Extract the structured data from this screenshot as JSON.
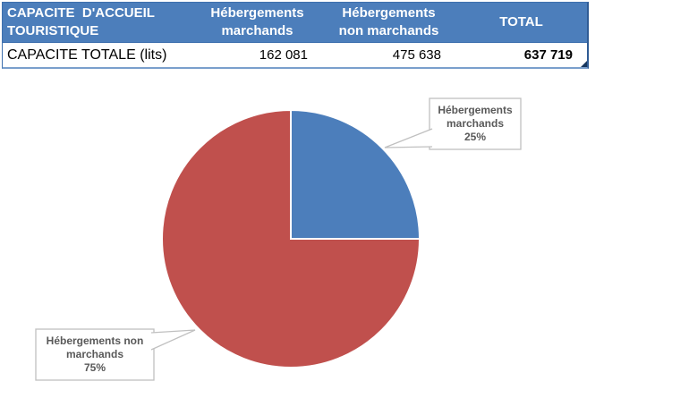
{
  "table": {
    "header_bg": "#4C7EBB",
    "header_text_color": "#FFFFFF",
    "columns": [
      {
        "label": "CAPACITE  D'ACCUEIL\nTOURISTIQUE"
      },
      {
        "label": "Hébergements\nmarchands"
      },
      {
        "label": "Hébergements\nnon marchands"
      },
      {
        "label": "TOTAL"
      }
    ],
    "row": {
      "label": "CAPACITE TOTALE (lits)",
      "marchands": "162 081",
      "non_marchands": "475 638",
      "total": "637 719"
    }
  },
  "chart_data": {
    "type": "pie",
    "title": "",
    "slices": [
      {
        "label": "Hébergements marchands",
        "value": 162081,
        "pct": 25,
        "color": "#4C7EBB",
        "callout": "Hébergements\nmarchands\n25%"
      },
      {
        "label": "Hébergements non marchands",
        "value": 475638,
        "pct": 75,
        "color": "#C0504D",
        "callout": "Hébergements non\nmarchands\n75%"
      }
    ],
    "start_angle_deg": -90,
    "direction": "clockwise",
    "legend_position": "none",
    "data_label_style": "callout boxes with category name and percent"
  }
}
